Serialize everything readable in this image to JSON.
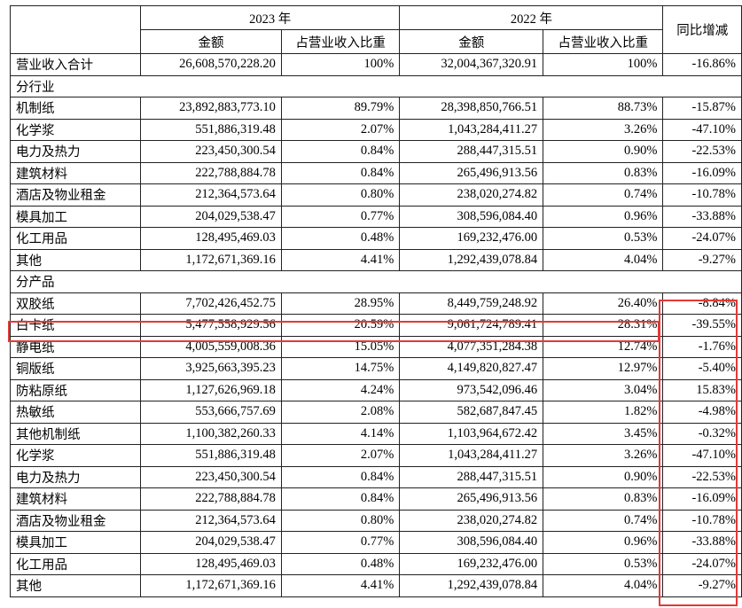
{
  "header": {
    "year_2023": "2023 年",
    "year_2022": "2022 年",
    "yoy": "同比增减",
    "amount": "金额",
    "share": "占营业收入比重"
  },
  "total": {
    "label": "营业收入合计",
    "amt_2023": "26,608,570,228.20",
    "pct_2023": "100%",
    "amt_2022": "32,004,367,320.91",
    "pct_2022": "100%",
    "yoy": "-16.86%"
  },
  "sections": [
    {
      "title": "分行业",
      "rows": [
        {
          "label": "机制纸",
          "amt_2023": "23,892,883,773.10",
          "pct_2023": "89.79%",
          "amt_2022": "28,398,850,766.51",
          "pct_2022": "88.73%",
          "yoy": "-15.87%"
        },
        {
          "label": "化学浆",
          "amt_2023": "551,886,319.48",
          "pct_2023": "2.07%",
          "amt_2022": "1,043,284,411.27",
          "pct_2022": "3.26%",
          "yoy": "-47.10%"
        },
        {
          "label": "电力及热力",
          "amt_2023": "223,450,300.54",
          "pct_2023": "0.84%",
          "amt_2022": "288,447,315.51",
          "pct_2022": "0.90%",
          "yoy": "-22.53%"
        },
        {
          "label": "建筑材料",
          "amt_2023": "222,788,884.78",
          "pct_2023": "0.84%",
          "amt_2022": "265,496,913.56",
          "pct_2022": "0.83%",
          "yoy": "-16.09%"
        },
        {
          "label": "酒店及物业租金",
          "amt_2023": "212,364,573.64",
          "pct_2023": "0.80%",
          "amt_2022": "238,020,274.82",
          "pct_2022": "0.74%",
          "yoy": "-10.78%"
        },
        {
          "label": "模具加工",
          "amt_2023": "204,029,538.47",
          "pct_2023": "0.77%",
          "amt_2022": "308,596,084.40",
          "pct_2022": "0.96%",
          "yoy": "-33.88%"
        },
        {
          "label": "化工用品",
          "amt_2023": "128,495,469.03",
          "pct_2023": "0.48%",
          "amt_2022": "169,232,476.00",
          "pct_2022": "0.53%",
          "yoy": "-24.07%"
        },
        {
          "label": "其他",
          "amt_2023": "1,172,671,369.16",
          "pct_2023": "4.41%",
          "amt_2022": "1,292,439,078.84",
          "pct_2022": "4.04%",
          "yoy": "-9.27%"
        }
      ]
    },
    {
      "title": "分产品",
      "rows": [
        {
          "label": "双胶纸",
          "amt_2023": "7,702,426,452.75",
          "pct_2023": "28.95%",
          "amt_2022": "8,449,759,248.92",
          "pct_2022": "26.40%",
          "yoy": "-8.84%"
        },
        {
          "label": "白卡纸",
          "amt_2023": "5,477,558,929.56",
          "pct_2023": "20.59%",
          "amt_2022": "9,061,724,789.41",
          "pct_2022": "28.31%",
          "yoy": "-39.55%"
        },
        {
          "label": "静电纸",
          "amt_2023": "4,005,559,008.36",
          "pct_2023": "15.05%",
          "amt_2022": "4,077,351,284.38",
          "pct_2022": "12.74%",
          "yoy": "-1.76%"
        },
        {
          "label": "铜版纸",
          "amt_2023": "3,925,663,395.23",
          "pct_2023": "14.75%",
          "amt_2022": "4,149,820,827.47",
          "pct_2022": "12.97%",
          "yoy": "-5.40%"
        },
        {
          "label": "防粘原纸",
          "amt_2023": "1,127,626,969.18",
          "pct_2023": "4.24%",
          "amt_2022": "973,542,096.46",
          "pct_2022": "3.04%",
          "yoy": "15.83%"
        },
        {
          "label": "热敏纸",
          "amt_2023": "553,666,757.69",
          "pct_2023": "2.08%",
          "amt_2022": "582,687,847.45",
          "pct_2022": "1.82%",
          "yoy": "-4.98%"
        },
        {
          "label": "其他机制纸",
          "amt_2023": "1,100,382,260.33",
          "pct_2023": "4.14%",
          "amt_2022": "1,103,964,672.42",
          "pct_2022": "3.45%",
          "yoy": "-0.32%"
        },
        {
          "label": "化学浆",
          "amt_2023": "551,886,319.48",
          "pct_2023": "2.07%",
          "amt_2022": "1,043,284,411.27",
          "pct_2022": "3.26%",
          "yoy": "-47.10%"
        },
        {
          "label": "电力及热力",
          "amt_2023": "223,450,300.54",
          "pct_2023": "0.84%",
          "amt_2022": "288,447,315.51",
          "pct_2022": "0.90%",
          "yoy": "-22.53%"
        },
        {
          "label": "建筑材料",
          "amt_2023": "222,788,884.78",
          "pct_2023": "0.84%",
          "amt_2022": "265,496,913.56",
          "pct_2022": "0.83%",
          "yoy": "-16.09%"
        },
        {
          "label": "酒店及物业租金",
          "amt_2023": "212,364,573.64",
          "pct_2023": "0.80%",
          "amt_2022": "238,020,274.82",
          "pct_2022": "0.74%",
          "yoy": "-10.78%"
        },
        {
          "label": "模具加工",
          "amt_2023": "204,029,538.47",
          "pct_2023": "0.77%",
          "amt_2022": "308,596,084.40",
          "pct_2022": "0.96%",
          "yoy": "-33.88%"
        },
        {
          "label": "化工用品",
          "amt_2023": "128,495,469.03",
          "pct_2023": "0.48%",
          "amt_2022": "169,232,476.00",
          "pct_2022": "0.53%",
          "yoy": "-24.07%"
        },
        {
          "label": "其他",
          "amt_2023": "1,172,671,369.16",
          "pct_2023": "4.41%",
          "amt_2022": "1,292,439,078.84",
          "pct_2022": "4.04%",
          "yoy": "-9.27%"
        }
      ]
    }
  ],
  "highlight": {
    "color": "#e53935",
    "row": "白卡纸",
    "column": "同比增减"
  }
}
